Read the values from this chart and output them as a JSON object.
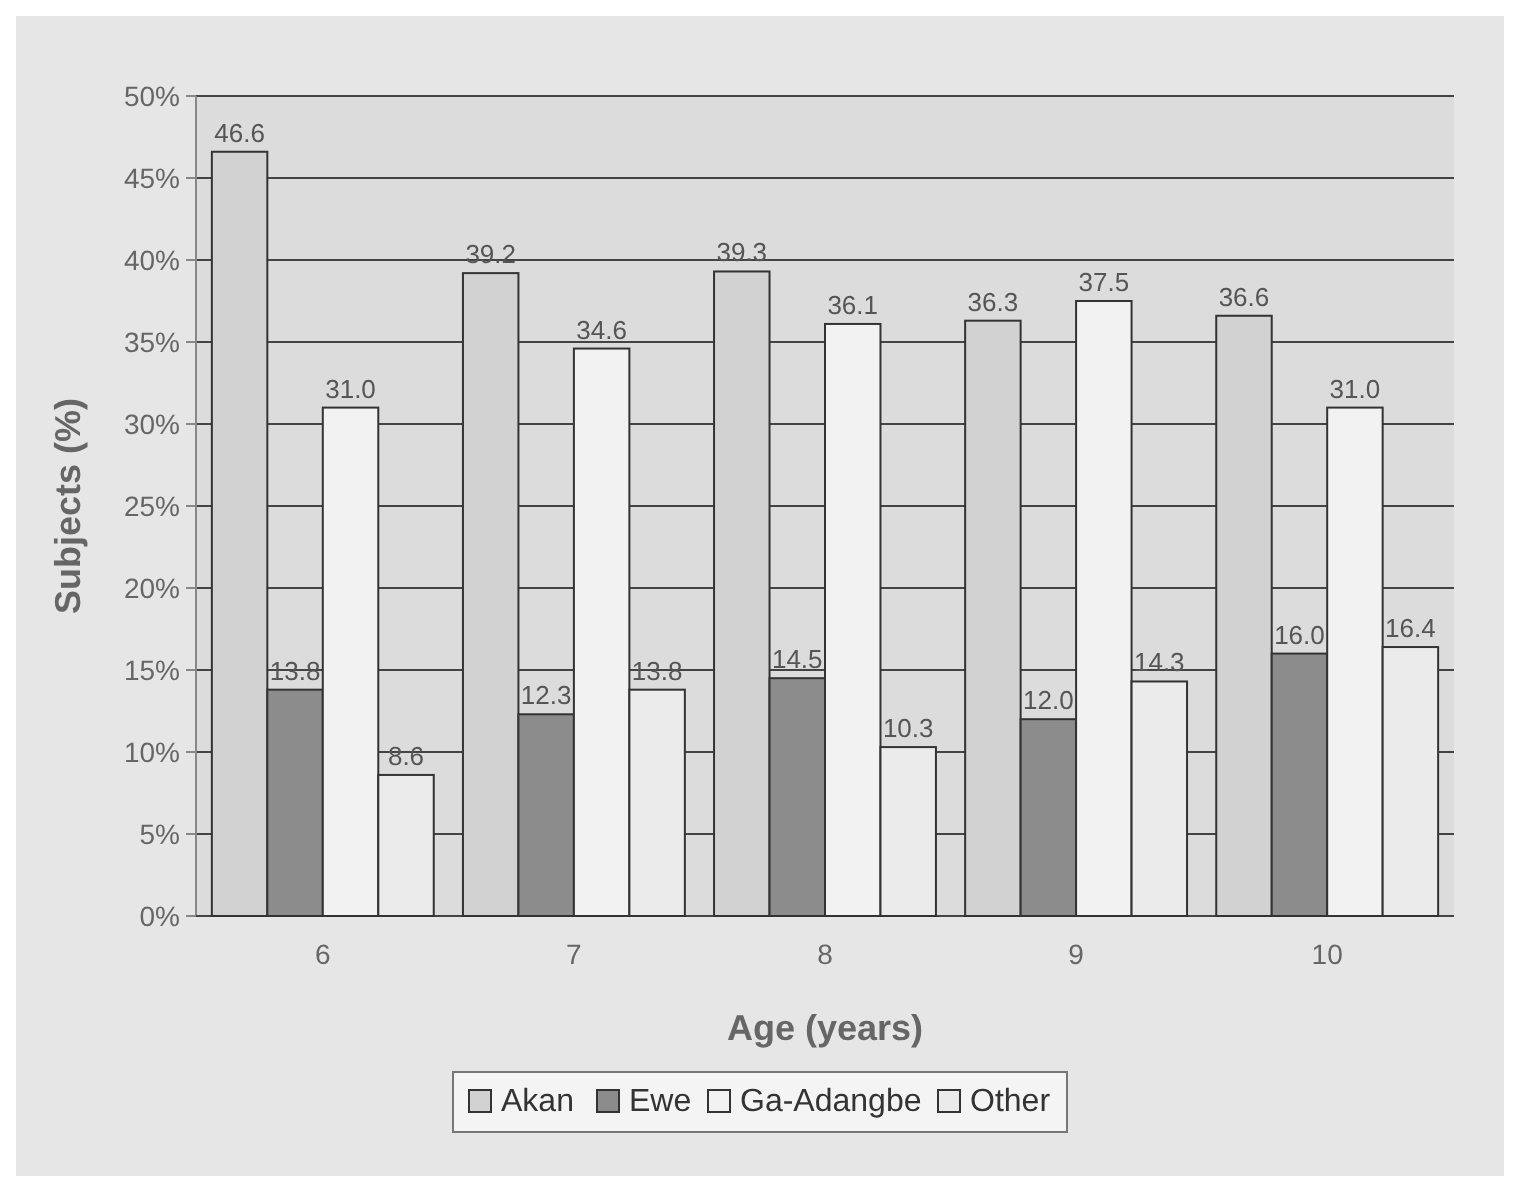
{
  "chart_data": {
    "type": "bar",
    "xlabel": "Age (years)",
    "ylabel": "Subjects (%)",
    "categories": [
      "6",
      "7",
      "8",
      "9",
      "10"
    ],
    "series": [
      {
        "name": "Akan",
        "color": "#d2d2d2",
        "values": [
          46.6,
          39.2,
          39.3,
          36.3,
          36.6
        ],
        "value_labels": [
          "46.6",
          "39.2",
          "39.3",
          "36.3",
          "36.6"
        ]
      },
      {
        "name": "Ewe",
        "color": "#8c8c8c",
        "values": [
          13.8,
          12.3,
          14.5,
          12.0,
          16.0
        ],
        "value_labels": [
          "13.8",
          "12.3",
          "14.5",
          "12.0",
          "16.0"
        ]
      },
      {
        "name": "Ga-Adangbe",
        "color": "#f2f2f2",
        "values": [
          31.0,
          34.6,
          36.1,
          37.5,
          31.0
        ],
        "value_labels": [
          "31.0",
          "34.6",
          "36.1",
          "37.5",
          "31.0"
        ]
      },
      {
        "name": "Other",
        "color": "#ebebeb",
        "values": [
          8.6,
          13.8,
          10.3,
          14.3,
          16.4
        ],
        "value_labels": [
          "8.6",
          "13.8",
          "10.3",
          "14.3",
          "16.4"
        ]
      }
    ],
    "ylim": [
      0,
      50
    ],
    "yticks": [
      {
        "value": 0,
        "label": "0%"
      },
      {
        "value": 5,
        "label": "5%"
      },
      {
        "value": 10,
        "label": "10%"
      },
      {
        "value": 15,
        "label": "15%"
      },
      {
        "value": 20,
        "label": "20%"
      },
      {
        "value": 25,
        "label": "25%"
      },
      {
        "value": 30,
        "label": "30%"
      },
      {
        "value": 35,
        "label": "35%"
      },
      {
        "value": 40,
        "label": "40%"
      },
      {
        "value": 45,
        "label": "45%"
      },
      {
        "value": 50,
        "label": "50%"
      }
    ],
    "grid": "y",
    "legend": "bottom"
  }
}
